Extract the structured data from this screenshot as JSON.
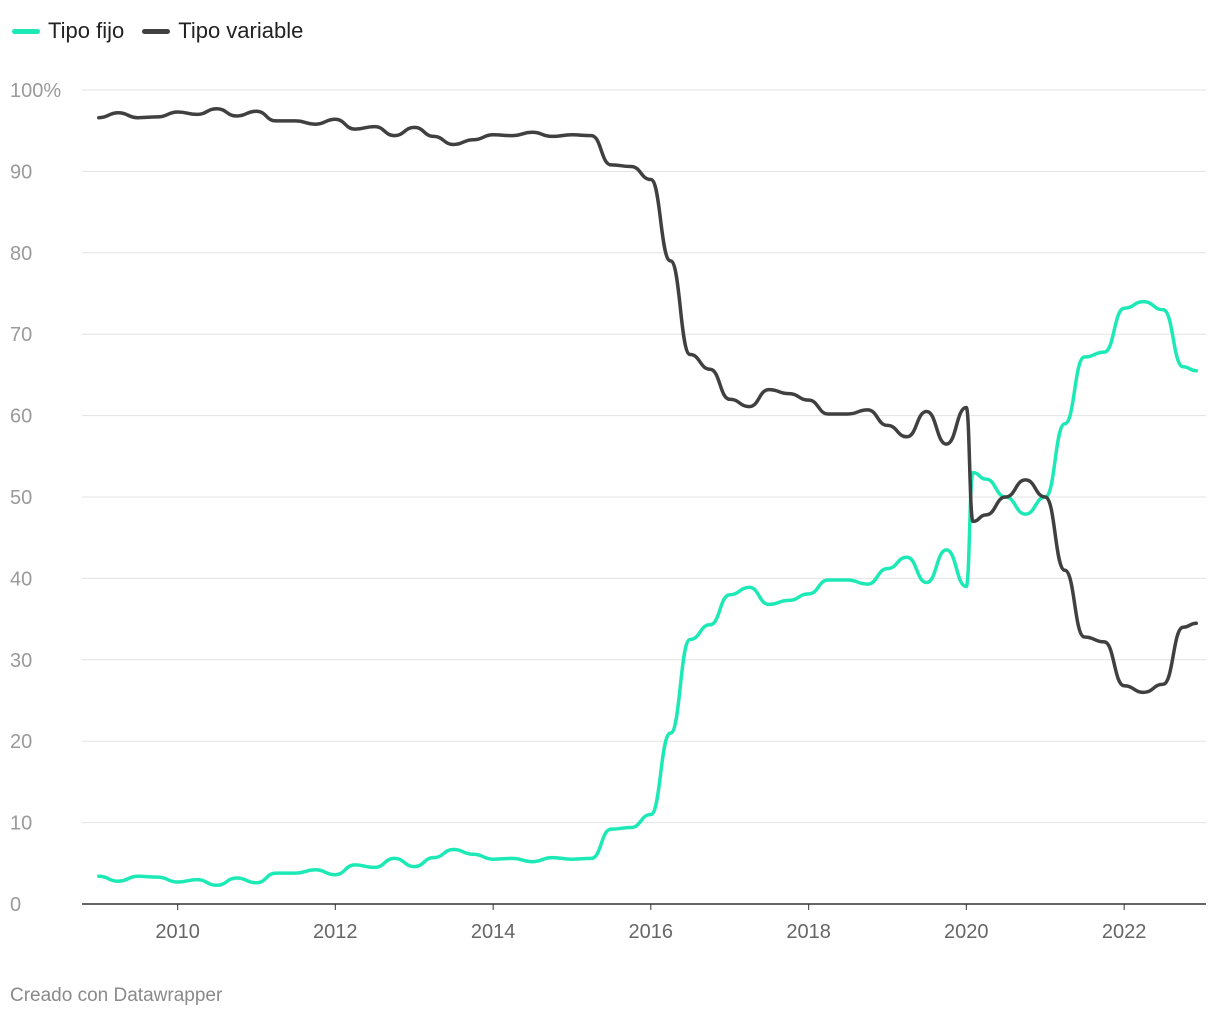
{
  "chart_data": {
    "type": "line",
    "ylim": [
      0,
      100
    ],
    "xlim": [
      "2008-10-15",
      "2023-01-15"
    ],
    "y_ticks": [
      {
        "value": 0,
        "label": "0"
      },
      {
        "value": 10,
        "label": "10"
      },
      {
        "value": 20,
        "label": "20"
      },
      {
        "value": 30,
        "label": "30"
      },
      {
        "value": 40,
        "label": "40"
      },
      {
        "value": 50,
        "label": "50"
      },
      {
        "value": 60,
        "label": "60"
      },
      {
        "value": 70,
        "label": "70"
      },
      {
        "value": 80,
        "label": "80"
      },
      {
        "value": 90,
        "label": "90"
      },
      {
        "value": 100,
        "label": "100%"
      }
    ],
    "x_ticks": [
      {
        "value": "2010-01-01",
        "label": "2010"
      },
      {
        "value": "2012-01-01",
        "label": "2012"
      },
      {
        "value": "2014-01-01",
        "label": "2014"
      },
      {
        "value": "2016-01-01",
        "label": "2016"
      },
      {
        "value": "2018-01-01",
        "label": "2018"
      },
      {
        "value": "2020-01-01",
        "label": "2020"
      },
      {
        "value": "2022-01-01",
        "label": "2022"
      }
    ],
    "grid": true,
    "legend_position": "top-left",
    "series": [
      {
        "name": "Tipo fijo",
        "color": "#1de9b6",
        "points": [
          [
            "2009-01-01",
            3.4
          ],
          [
            "2009-04-01",
            2.8
          ],
          [
            "2009-07-01",
            3.4
          ],
          [
            "2009-10-01",
            3.3
          ],
          [
            "2010-01-01",
            2.7
          ],
          [
            "2010-04-01",
            3.0
          ],
          [
            "2010-07-01",
            2.3
          ],
          [
            "2010-10-01",
            3.2
          ],
          [
            "2011-01-01",
            2.6
          ],
          [
            "2011-04-01",
            3.8
          ],
          [
            "2011-07-01",
            3.8
          ],
          [
            "2011-10-01",
            4.2
          ],
          [
            "2012-01-01",
            3.6
          ],
          [
            "2012-04-01",
            4.8
          ],
          [
            "2012-07-01",
            4.5
          ],
          [
            "2012-10-01",
            5.6
          ],
          [
            "2013-01-01",
            4.6
          ],
          [
            "2013-04-01",
            5.7
          ],
          [
            "2013-07-01",
            6.7
          ],
          [
            "2013-10-01",
            6.1
          ],
          [
            "2014-01-01",
            5.5
          ],
          [
            "2014-04-01",
            5.6
          ],
          [
            "2014-07-01",
            5.2
          ],
          [
            "2014-10-01",
            5.7
          ],
          [
            "2015-01-01",
            5.5
          ],
          [
            "2015-04-01",
            5.6
          ],
          [
            "2015-07-01",
            9.2
          ],
          [
            "2015-10-01",
            9.4
          ],
          [
            "2016-01-01",
            11.0
          ],
          [
            "2016-04-01",
            21.0
          ],
          [
            "2016-07-01",
            32.5
          ],
          [
            "2016-10-01",
            34.3
          ],
          [
            "2017-01-01",
            38.0
          ],
          [
            "2017-04-01",
            38.9
          ],
          [
            "2017-07-01",
            36.8
          ],
          [
            "2017-10-01",
            37.3
          ],
          [
            "2018-01-01",
            38.1
          ],
          [
            "2018-04-01",
            39.8
          ],
          [
            "2018-07-01",
            39.8
          ],
          [
            "2018-10-01",
            39.3
          ],
          [
            "2019-01-01",
            41.2
          ],
          [
            "2019-04-01",
            42.6
          ],
          [
            "2019-07-01",
            39.5
          ],
          [
            "2019-10-01",
            43.5
          ],
          [
            "2020-01-01",
            39.0
          ],
          [
            "2020-02-01",
            53.0
          ],
          [
            "2020-04-01",
            52.2
          ],
          [
            "2020-07-01",
            50.0
          ],
          [
            "2020-10-01",
            47.9
          ],
          [
            "2021-01-01",
            50.0
          ],
          [
            "2021-04-01",
            59.0
          ],
          [
            "2021-07-01",
            67.2
          ],
          [
            "2021-10-01",
            67.8
          ],
          [
            "2022-01-01",
            73.2
          ],
          [
            "2022-04-01",
            74.0
          ],
          [
            "2022-07-01",
            73.0
          ],
          [
            "2022-10-01",
            66.0
          ],
          [
            "2022-12-01",
            65.5
          ]
        ]
      },
      {
        "name": "Tipo variable",
        "color": "#404040",
        "points": [
          [
            "2009-01-01",
            96.6
          ],
          [
            "2009-04-01",
            97.2
          ],
          [
            "2009-07-01",
            96.6
          ],
          [
            "2009-10-01",
            96.7
          ],
          [
            "2010-01-01",
            97.3
          ],
          [
            "2010-04-01",
            97.0
          ],
          [
            "2010-07-01",
            97.7
          ],
          [
            "2010-10-01",
            96.8
          ],
          [
            "2011-01-01",
            97.4
          ],
          [
            "2011-04-01",
            96.2
          ],
          [
            "2011-07-01",
            96.2
          ],
          [
            "2011-10-01",
            95.8
          ],
          [
            "2012-01-01",
            96.4
          ],
          [
            "2012-04-01",
            95.2
          ],
          [
            "2012-07-01",
            95.5
          ],
          [
            "2012-10-01",
            94.4
          ],
          [
            "2013-01-01",
            95.4
          ],
          [
            "2013-04-01",
            94.3
          ],
          [
            "2013-07-01",
            93.3
          ],
          [
            "2013-10-01",
            93.9
          ],
          [
            "2014-01-01",
            94.5
          ],
          [
            "2014-04-01",
            94.4
          ],
          [
            "2014-07-01",
            94.8
          ],
          [
            "2014-10-01",
            94.3
          ],
          [
            "2015-01-01",
            94.5
          ],
          [
            "2015-04-01",
            94.4
          ],
          [
            "2015-07-01",
            90.8
          ],
          [
            "2015-10-01",
            90.6
          ],
          [
            "2016-01-01",
            89.0
          ],
          [
            "2016-04-01",
            79.0
          ],
          [
            "2016-07-01",
            67.5
          ],
          [
            "2016-10-01",
            65.7
          ],
          [
            "2017-01-01",
            62.0
          ],
          [
            "2017-04-01",
            61.1
          ],
          [
            "2017-07-01",
            63.2
          ],
          [
            "2017-10-01",
            62.7
          ],
          [
            "2018-01-01",
            61.9
          ],
          [
            "2018-04-01",
            60.2
          ],
          [
            "2018-07-01",
            60.2
          ],
          [
            "2018-10-01",
            60.7
          ],
          [
            "2019-01-01",
            58.8
          ],
          [
            "2019-04-01",
            57.4
          ],
          [
            "2019-07-01",
            60.5
          ],
          [
            "2019-10-01",
            56.5
          ],
          [
            "2020-01-01",
            61.0
          ],
          [
            "2020-02-01",
            47.0
          ],
          [
            "2020-04-01",
            47.8
          ],
          [
            "2020-07-01",
            50.0
          ],
          [
            "2020-10-01",
            52.1
          ],
          [
            "2021-01-01",
            50.0
          ],
          [
            "2021-04-01",
            41.0
          ],
          [
            "2021-07-01",
            32.8
          ],
          [
            "2021-10-01",
            32.2
          ],
          [
            "2022-01-01",
            26.8
          ],
          [
            "2022-04-01",
            26.0
          ],
          [
            "2022-07-01",
            27.0
          ],
          [
            "2022-10-01",
            34.0
          ],
          [
            "2022-12-01",
            34.5
          ]
        ]
      }
    ]
  },
  "footer": {
    "credit": "Creado con Datawrapper"
  }
}
